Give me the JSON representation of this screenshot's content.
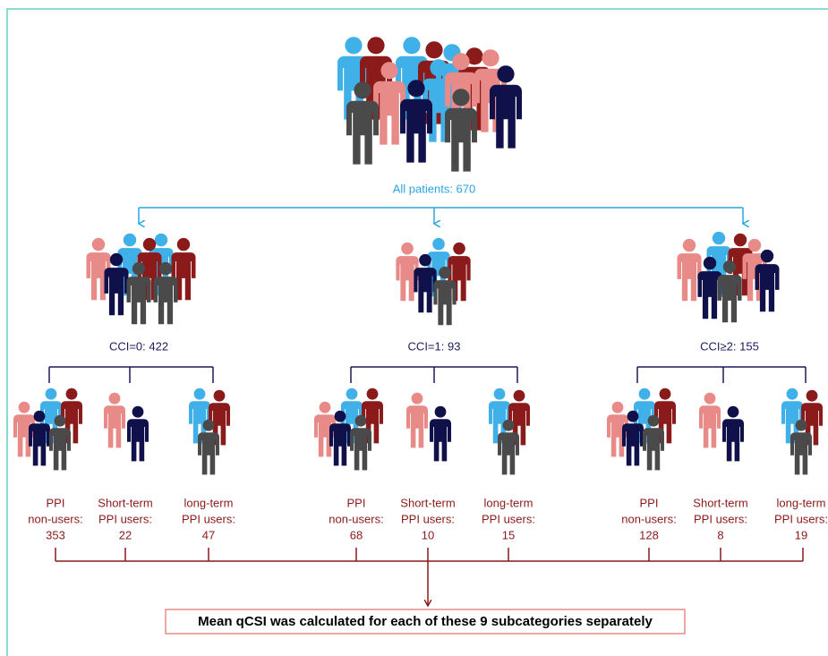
{
  "root": {
    "label": "All patients: 670"
  },
  "groups": [
    {
      "label": "CCI=0: 422",
      "subgroups": [
        {
          "label": [
            "PPI",
            "non-users:",
            "353"
          ]
        },
        {
          "label": [
            "Short-term",
            "PPI users:",
            "22"
          ]
        },
        {
          "label": [
            "long-term",
            "PPI users:",
            "47"
          ]
        }
      ]
    },
    {
      "label": "CCI=1: 93",
      "subgroups": [
        {
          "label": [
            "PPI",
            "non-users:",
            "68"
          ]
        },
        {
          "label": [
            "Short-term",
            "PPI users:",
            "10"
          ]
        },
        {
          "label": [
            "long-term",
            "PPI users:",
            "15"
          ]
        }
      ]
    },
    {
      "label": "CCI≥2: 155",
      "subgroups": [
        {
          "label": [
            "PPI",
            "non-users:",
            "128"
          ]
        },
        {
          "label": [
            "Short-term",
            "PPI users:",
            "8"
          ]
        },
        {
          "label": [
            "long-term",
            "PPI users:",
            "19"
          ]
        }
      ]
    }
  ],
  "footer": "Mean qCSI was calculated for each of these 9 subcategories separately"
}
